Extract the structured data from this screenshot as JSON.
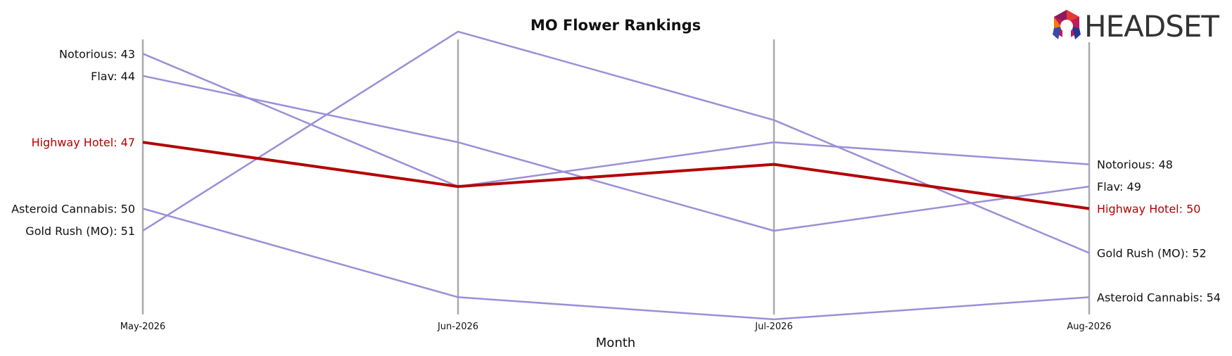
{
  "chart_data": {
    "type": "line",
    "title": "MO Flower Rankings",
    "xlabel": "Month",
    "ylabel": "",
    "categories": [
      "May-2026",
      "Jun-2026",
      "Jul-2026",
      "Aug-2026"
    ],
    "y_axis": "rank, inverted (rank 1 at top)",
    "ylim": [
      42.1,
      55.1
    ],
    "grid": "vertical lines at each month",
    "series": [
      {
        "name": "Notorious",
        "values": [
          43,
          49,
          47,
          48
        ],
        "start_label": "Notorious: 43",
        "end_label": "Notorious: 48",
        "highlight": false
      },
      {
        "name": "Flav",
        "values": [
          44,
          47,
          51,
          49
        ],
        "start_label": "Flav: 44",
        "end_label": "Flav: 49",
        "highlight": false
      },
      {
        "name": "Highway Hotel",
        "values": [
          47,
          49,
          48,
          50
        ],
        "start_label": "Highway Hotel: 47",
        "end_label": "Highway Hotel: 50",
        "highlight": true
      },
      {
        "name": "Asteroid Cannabis",
        "values": [
          50,
          54,
          55,
          54
        ],
        "start_label": "Asteroid Cannabis: 50",
        "end_label": "Asteroid Cannabis: 54",
        "highlight": false
      },
      {
        "name": "Gold Rush (MO)",
        "values": [
          51,
          42,
          46,
          52
        ],
        "start_label": "Gold Rush (MO): 51",
        "end_label": "Gold Rush (MO): 52",
        "highlight": false
      }
    ],
    "colors": {
      "highlight": "#b30000",
      "other": "#9b8fd8",
      "gridline": "#aaaaaa"
    }
  },
  "logo": {
    "text": "HEADSET"
  }
}
